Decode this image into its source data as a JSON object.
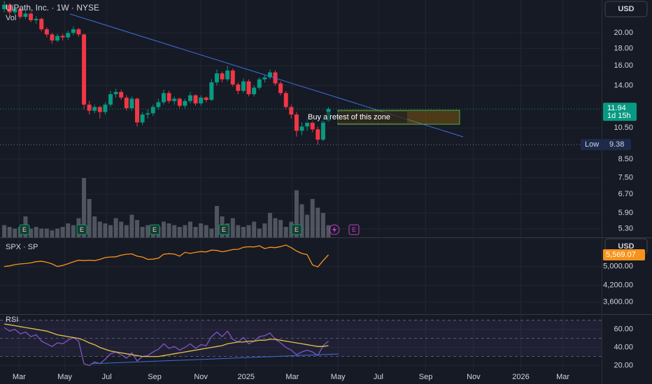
{
  "chart_data": [
    {
      "type": "candlestick",
      "title": "UiPath, Inc. · 1W · NYSE",
      "subtitle": "Vol",
      "currency": "USD",
      "log_scale": true,
      "ylim": [
        5,
        25
      ],
      "xlim": [
        -0.8,
        112.4
      ],
      "yticks": [
        {
          "value": 20,
          "label": "20.00"
        },
        {
          "value": 18,
          "label": "18.00"
        },
        {
          "value": 16,
          "label": "16.00"
        },
        {
          "value": 14,
          "label": "14.00"
        },
        {
          "value": 10.5,
          "label": "10.50"
        },
        {
          "value": 8.5,
          "label": "8.50"
        },
        {
          "value": 7.5,
          "label": "7.50"
        },
        {
          "value": 6.7,
          "label": "6.70"
        },
        {
          "value": 5.9,
          "label": "5.90"
        },
        {
          "value": 5.3,
          "label": "5.30"
        }
      ],
      "up_color": "#089981",
      "down_color": "#f23645",
      "open": [
        23.5,
        24.2,
        23.0,
        23.5,
        22.3,
        22.8,
        21.8,
        22.0,
        20.5,
        19.8,
        19.0,
        19.6,
        19.4,
        20.0,
        20.5,
        19.8,
        12.3,
        11.8,
        12.1,
        11.7,
        12.3,
        13.2,
        13.4,
        12.9,
        12.0,
        12.8,
        10.9,
        11.5,
        11.6,
        12.1,
        12.5,
        13.3,
        12.6,
        12.8,
        12.2,
        12.6,
        13.1,
        12.4,
        12.9,
        12.7,
        14.3,
        15.2,
        14.6,
        15.5,
        14.1,
        13.5,
        14.4,
        13.2,
        13.8,
        14.6,
        14.8,
        15.3,
        14.2,
        13.3,
        12.1,
        11.5,
        10.3,
        10.6,
        10.9,
        10.4,
        9.7,
        11.0
      ],
      "high": [
        24.8,
        24.5,
        24.0,
        23.8,
        23.2,
        23.0,
        22.4,
        22.2,
        20.8,
        20.0,
        19.9,
        19.9,
        20.3,
        20.9,
        20.7,
        19.9,
        12.6,
        12.3,
        12.2,
        12.5,
        13.5,
        13.7,
        13.6,
        13.1,
        13.0,
        12.9,
        11.7,
        11.9,
        12.3,
        12.8,
        13.6,
        13.5,
        13.0,
        12.9,
        12.8,
        13.4,
        13.2,
        13.1,
        13.0,
        14.6,
        15.6,
        15.4,
        16.0,
        15.7,
        14.3,
        14.7,
        14.6,
        14.0,
        14.8,
        15.1,
        15.6,
        15.5,
        14.4,
        13.5,
        12.3,
        11.7,
        10.9,
        11.2,
        11.1,
        10.6,
        11.2,
        12.1
      ],
      "low": [
        23.0,
        22.6,
        22.7,
        22.0,
        22.0,
        21.5,
        21.3,
        20.2,
        19.4,
        18.6,
        18.8,
        19.0,
        19.1,
        19.7,
        19.5,
        11.9,
        11.5,
        11.6,
        11.2,
        11.5,
        12.1,
        12.9,
        12.7,
        11.8,
        11.8,
        10.6,
        10.7,
        11.2,
        11.4,
        11.9,
        12.3,
        12.4,
        12.3,
        12.0,
        12.0,
        12.4,
        12.2,
        12.2,
        12.5,
        12.6,
        14.0,
        14.3,
        14.4,
        13.9,
        13.2,
        13.3,
        13.0,
        13.0,
        13.6,
        14.3,
        14.6,
        14.0,
        13.1,
        11.9,
        11.2,
        9.9,
        10.0,
        10.3,
        10.2,
        9.38,
        9.6,
        10.9
      ],
      "close": [
        24.2,
        23.0,
        23.5,
        22.3,
        22.8,
        21.8,
        22.0,
        20.5,
        19.8,
        19.0,
        19.6,
        19.4,
        20.0,
        20.5,
        19.8,
        12.3,
        11.8,
        12.1,
        11.7,
        12.3,
        13.2,
        13.4,
        12.9,
        12.0,
        12.8,
        10.9,
        11.5,
        11.6,
        12.1,
        12.5,
        13.3,
        12.6,
        12.8,
        12.2,
        12.6,
        13.1,
        12.4,
        12.9,
        12.7,
        14.3,
        15.2,
        14.6,
        15.5,
        14.1,
        13.5,
        14.4,
        13.2,
        13.8,
        14.6,
        14.8,
        15.3,
        14.2,
        13.3,
        12.1,
        11.5,
        10.3,
        10.6,
        10.9,
        10.4,
        9.7,
        11.0,
        11.94
      ],
      "volume": {
        "ylim": [
          0,
          40
        ],
        "color": "#787b86",
        "values": [
          7,
          6,
          5,
          6,
          12,
          5,
          6,
          5,
          5,
          4,
          5,
          6,
          8,
          7,
          11,
          34,
          22,
          12,
          9,
          8,
          7,
          11,
          9,
          7,
          13,
          10,
          6,
          7,
          5,
          6,
          9,
          8,
          7,
          6,
          7,
          9,
          6,
          8,
          7,
          5,
          18,
          12,
          8,
          11,
          7,
          6,
          7,
          9,
          5,
          8,
          14,
          11,
          10,
          6,
          9,
          27,
          19,
          13,
          22,
          17,
          14,
          7
        ]
      },
      "earnings_label": "E",
      "last": {
        "value": 11.94,
        "label": "11.94",
        "countdown": "1d 15h"
      },
      "low_marker": {
        "name": "Low",
        "value": 9.38,
        "label": "9.38"
      },
      "annotation": "Buy a retest of this zone"
    },
    {
      "type": "line",
      "title": "SPX · SP",
      "currency": "USD",
      "log_scale": true,
      "ylim": [
        3200,
        6500
      ],
      "xlim": [
        -0.8,
        112.4
      ],
      "yticks": [
        {
          "value": 5000,
          "label": "5,000.00"
        },
        {
          "value": 4200,
          "label": "4,200.00"
        },
        {
          "value": 3600,
          "label": "3,600.00"
        }
      ],
      "series": [
        {
          "color": "#f7931a",
          "values": [
            5000,
            5030,
            5090,
            5120,
            5140,
            5170,
            5230,
            5250,
            5200,
            5120,
            5000,
            5050,
            5130,
            5220,
            5300,
            5280,
            5300,
            5280,
            5340,
            5430,
            5460,
            5470,
            5550,
            5600,
            5620,
            5500,
            5460,
            5340,
            5350,
            5400,
            5600,
            5630,
            5610,
            5500,
            5700,
            5640,
            5700,
            5740,
            5720,
            5820,
            5800,
            5730,
            5780,
            5850,
            5860,
            5970,
            6000,
            5990,
            6050,
            5900,
            5970,
            5950,
            6010,
            6100,
            5950,
            5770,
            5640,
            5580,
            5080,
            4980,
            5280,
            5569.07
          ]
        }
      ],
      "last": {
        "value": 5569.07,
        "label": "5,569.07"
      }
    },
    {
      "type": "line",
      "title": "RSI",
      "ylim": [
        15,
        76
      ],
      "xlim": [
        -0.8,
        112.4
      ],
      "levels": [
        70,
        50,
        30
      ],
      "yticks": [
        {
          "value": 60,
          "label": "60.00"
        },
        {
          "value": 40,
          "label": "40.00"
        },
        {
          "value": 20,
          "label": "20.00"
        }
      ],
      "xticks": [
        {
          "value": 2.8,
          "label": "Mar"
        },
        {
          "value": 11.4,
          "label": "May"
        },
        {
          "value": 19.3,
          "label": "Jul"
        },
        {
          "value": 28.3,
          "label": "Sep"
        },
        {
          "value": 37.0,
          "label": "Nov"
        },
        {
          "value": 45.5,
          "label": "2025"
        },
        {
          "value": 54.2,
          "label": "Mar"
        },
        {
          "value": 62.8,
          "label": "May"
        },
        {
          "value": 70.4,
          "label": "Jul"
        },
        {
          "value": 79.3,
          "label": "Sep"
        },
        {
          "value": 88.3,
          "label": "Nov"
        },
        {
          "value": 97.2,
          "label": "2026"
        },
        {
          "value": 105.1,
          "label": "Mar"
        }
      ],
      "series": [
        {
          "color": "#7e57c2",
          "values": [
            62,
            58,
            60,
            55,
            57,
            52,
            54,
            47,
            44,
            41,
            45,
            44,
            48,
            51,
            47,
            22,
            20,
            24,
            22,
            27,
            33,
            35,
            32,
            28,
            34,
            25,
            30,
            31,
            35,
            38,
            44,
            39,
            41,
            37,
            40,
            44,
            39,
            43,
            42,
            52,
            57,
            52,
            58,
            49,
            46,
            51,
            44,
            47,
            52,
            53,
            56,
            49,
            45,
            40,
            37,
            32,
            35,
            37,
            35,
            31,
            42,
            47
          ]
        },
        {
          "color": "#e2c34a",
          "values": [
            66,
            65,
            64,
            63,
            62,
            61,
            60,
            59,
            58,
            56,
            54,
            53,
            52,
            51,
            50,
            48,
            45,
            43,
            40,
            38,
            36,
            35,
            34,
            33,
            32,
            31,
            30,
            30,
            30,
            30,
            31,
            32,
            33,
            34,
            35,
            36,
            37,
            38,
            39,
            40,
            41,
            42,
            44,
            45,
            46,
            46,
            47,
            47,
            48,
            48,
            49,
            49,
            48,
            47,
            46,
            45,
            44,
            43,
            42,
            41,
            41,
            42
          ]
        }
      ]
    }
  ]
}
